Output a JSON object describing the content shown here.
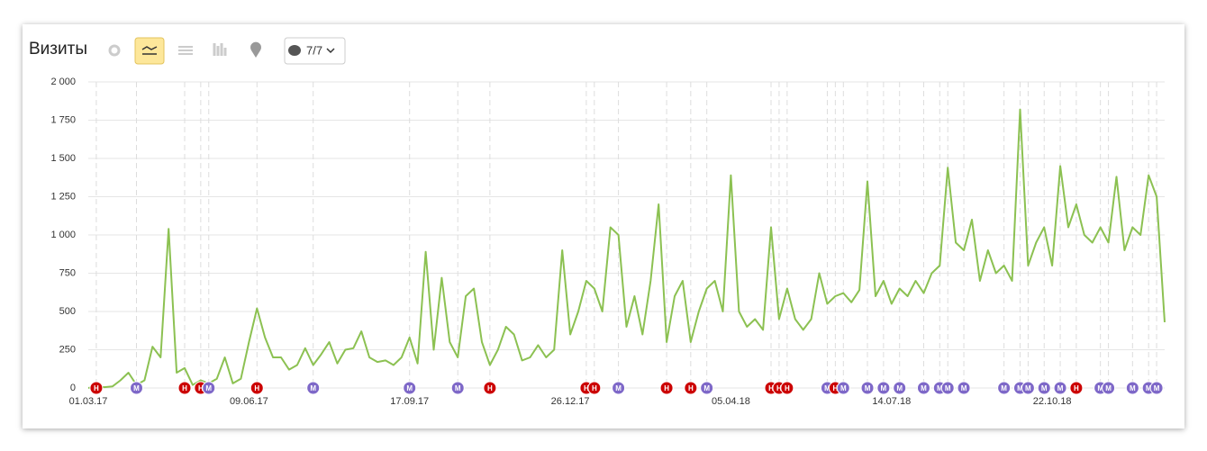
{
  "ui": {
    "filter_label": "7/7"
  },
  "chart_data": {
    "type": "line",
    "title": "Визиты",
    "color": "#8cc152",
    "categories": [
      "01.03.17",
      null,
      null,
      null,
      null,
      null,
      null,
      null,
      null,
      null,
      null,
      null,
      null,
      null,
      null,
      null,
      null,
      null,
      null,
      null,
      "09.06.17",
      null,
      null,
      null,
      null,
      null,
      null,
      null,
      null,
      null,
      null,
      null,
      null,
      null,
      null,
      null,
      null,
      null,
      null,
      null,
      "17.09.17",
      null,
      null,
      null,
      null,
      null,
      null,
      null,
      null,
      null,
      null,
      null,
      null,
      null,
      null,
      null,
      null,
      null,
      null,
      null,
      "26.12.17",
      null,
      null,
      null,
      null,
      null,
      null,
      null,
      null,
      null,
      null,
      null,
      null,
      null,
      null,
      null,
      null,
      null,
      null,
      null,
      "05.04.18",
      null,
      null,
      null,
      null,
      null,
      null,
      null,
      null,
      null,
      null,
      null,
      null,
      null,
      null,
      null,
      null,
      null,
      null,
      null,
      "14.07.18",
      null,
      null,
      null,
      null,
      null,
      null,
      null,
      null,
      null,
      null,
      null,
      null,
      null,
      null,
      null,
      null,
      null,
      null,
      null,
      "22.10.18",
      null,
      null,
      null,
      null,
      null,
      null,
      null,
      null,
      null,
      null,
      null,
      null,
      null,
      null
    ],
    "values": [
      0,
      10,
      5,
      10,
      50,
      100,
      20,
      50,
      270,
      200,
      1040,
      100,
      130,
      20,
      50,
      30,
      60,
      200,
      30,
      60,
      300,
      520,
      330,
      200,
      200,
      120,
      150,
      260,
      150,
      220,
      300,
      160,
      250,
      260,
      370,
      200,
      170,
      180,
      150,
      200,
      330,
      160,
      890,
      250,
      720,
      300,
      200,
      600,
      650,
      300,
      150,
      250,
      400,
      350,
      180,
      200,
      280,
      200,
      250,
      900,
      350,
      500,
      700,
      650,
      500,
      1050,
      1000,
      400,
      600,
      350,
      700,
      1200,
      300,
      600,
      700,
      300,
      500,
      650,
      700,
      500,
      1390,
      500,
      400,
      450,
      380,
      1050,
      450,
      650,
      450,
      380,
      450,
      750,
      550,
      600,
      620,
      560,
      640,
      1350,
      600,
      700,
      550,
      650,
      600,
      700,
      620,
      750,
      800,
      1440,
      950,
      900,
      1100,
      700,
      900,
      750,
      800,
      700,
      1820,
      800,
      950,
      1050,
      800,
      1450,
      1050,
      1200,
      1000,
      950,
      1050,
      950,
      1380,
      900,
      1050,
      1000,
      1390,
      1250,
      430
    ],
    "ylim": [
      0,
      2000
    ],
    "yticks": [
      0,
      250,
      500,
      750,
      {
        "value": 1000,
        "label": "1 000"
      },
      {
        "value": 1250,
        "label": "1 250"
      },
      {
        "value": 1500,
        "label": "1 500"
      },
      {
        "value": 1750,
        "label": "1 750"
      },
      {
        "value": 2000,
        "label": "2 000"
      }
    ],
    "grid": true,
    "events": [
      {
        "label": "Н",
        "at": 1,
        "color": "#cc0000"
      },
      {
        "label": "М",
        "at": 6,
        "color": "#7e68c8"
      },
      {
        "label": "Н",
        "at": 12,
        "color": "#cc0000"
      },
      {
        "label": "Н",
        "at": 14,
        "color": "#cc0000"
      },
      {
        "label": "М",
        "at": 15,
        "color": "#7e68c8"
      },
      {
        "label": "Н",
        "at": 21,
        "color": "#cc0000"
      },
      {
        "label": "М",
        "at": 28,
        "color": "#7e68c8"
      },
      {
        "label": "М",
        "at": 40,
        "color": "#7e68c8"
      },
      {
        "label": "М",
        "at": 46,
        "color": "#7e68c8"
      },
      {
        "label": "Н",
        "at": 50,
        "color": "#cc0000"
      },
      {
        "label": "Н",
        "at": 62,
        "color": "#cc0000"
      },
      {
        "label": "Н",
        "at": 63,
        "color": "#cc0000"
      },
      {
        "label": "М",
        "at": 66,
        "color": "#7e68c8"
      },
      {
        "label": "Н",
        "at": 72,
        "color": "#cc0000"
      },
      {
        "label": "Н",
        "at": 75,
        "color": "#cc0000"
      },
      {
        "label": "М",
        "at": 77,
        "color": "#7e68c8"
      },
      {
        "label": "Н",
        "at": 85,
        "color": "#cc0000"
      },
      {
        "label": "Н",
        "at": 86,
        "color": "#cc0000"
      },
      {
        "label": "Н",
        "at": 87,
        "color": "#cc0000"
      },
      {
        "label": "М",
        "at": 92,
        "color": "#7e68c8"
      },
      {
        "label": "Н",
        "at": 93,
        "color": "#cc0000"
      },
      {
        "label": "М",
        "at": 94,
        "color": "#7e68c8"
      },
      {
        "label": "М",
        "at": 97,
        "color": "#7e68c8"
      },
      {
        "label": "М",
        "at": 99,
        "color": "#7e68c8"
      },
      {
        "label": "М",
        "at": 101,
        "color": "#7e68c8"
      },
      {
        "label": "М",
        "at": 104,
        "color": "#7e68c8"
      },
      {
        "label": "М",
        "at": 106,
        "color": "#7e68c8"
      },
      {
        "label": "М",
        "at": 107,
        "color": "#7e68c8"
      },
      {
        "label": "М",
        "at": 109,
        "color": "#7e68c8"
      },
      {
        "label": "М",
        "at": 114,
        "color": "#7e68c8"
      },
      {
        "label": "М",
        "at": 116,
        "color": "#7e68c8"
      },
      {
        "label": "М",
        "at": 117,
        "color": "#7e68c8"
      },
      {
        "label": "М",
        "at": 119,
        "color": "#7e68c8"
      },
      {
        "label": "М",
        "at": 121,
        "color": "#7e68c8"
      },
      {
        "label": "Н",
        "at": 123,
        "color": "#cc0000"
      },
      {
        "label": "М",
        "at": 126,
        "color": "#7e68c8"
      },
      {
        "label": "М",
        "at": 127,
        "color": "#7e68c8"
      },
      {
        "label": "М",
        "at": 130,
        "color": "#7e68c8"
      },
      {
        "label": "М",
        "at": 132,
        "color": "#7e68c8"
      },
      {
        "label": "М",
        "at": 133,
        "color": "#7e68c8"
      }
    ]
  }
}
